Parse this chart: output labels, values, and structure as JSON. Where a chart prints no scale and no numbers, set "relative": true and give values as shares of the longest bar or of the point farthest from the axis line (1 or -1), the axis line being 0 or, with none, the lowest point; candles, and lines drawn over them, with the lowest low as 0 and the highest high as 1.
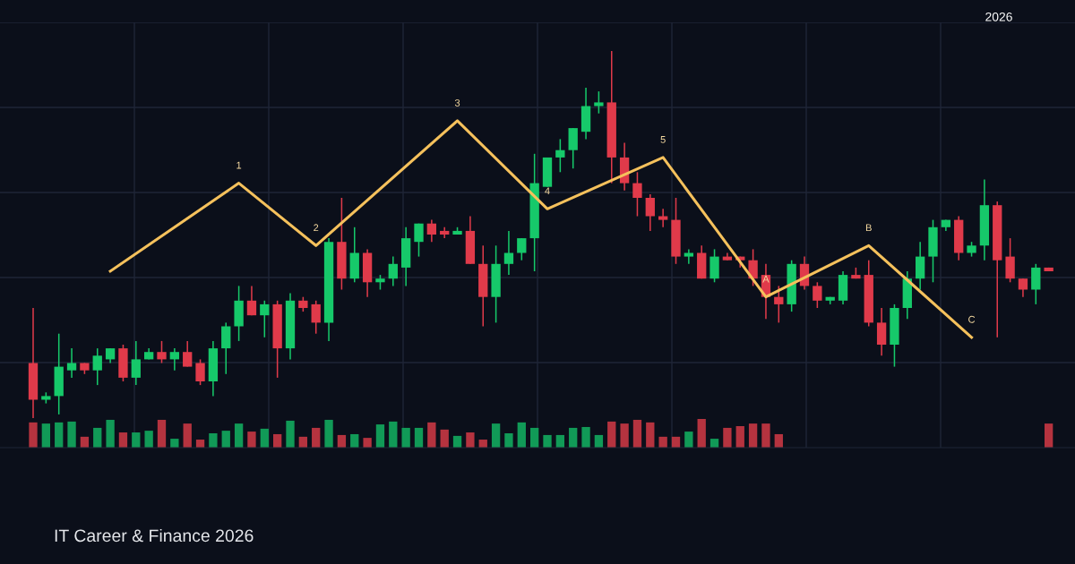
{
  "chart_data": [
    {
      "type": "candlestick",
      "subtitle": "IT Career & Finance 2026",
      "relative": true,
      "grid": true,
      "categories": [
        null,
        null,
        null,
        null,
        null,
        null,
        null,
        null,
        null,
        null,
        null,
        null,
        null,
        null,
        null,
        null,
        null,
        null,
        null,
        null,
        null,
        null,
        null,
        null,
        null,
        null,
        null,
        null,
        null,
        null,
        null,
        null,
        null,
        null,
        null,
        null,
        null,
        null,
        null,
        null,
        null,
        null,
        null,
        null,
        null,
        null,
        null,
        null,
        null,
        null,
        null,
        null,
        null,
        null,
        null,
        null,
        null,
        null,
        null,
        null,
        null,
        null,
        null,
        null,
        null,
        null,
        null,
        null,
        null,
        null,
        null,
        null,
        null,
        null,
        null,
        null,
        null,
        null,
        null,
        null
      ],
      "colors": [
        "#e03a4a",
        "#16c96a",
        "#16c96a",
        "#16c96a",
        "#e03a4a",
        "#16c96a",
        "#16c96a",
        "#e03a4a",
        "#16c96a",
        "#16c96a",
        "#e03a4a",
        "#16c96a",
        "#e03a4a",
        "#e03a4a",
        "#16c96a",
        "#16c96a",
        "#16c96a",
        "#e03a4a",
        "#16c96a",
        "#e03a4a",
        "#16c96a",
        "#e03a4a",
        "#e03a4a",
        "#16c96a",
        "#e03a4a",
        "#16c96a",
        "#e03a4a",
        "#16c96a",
        "#16c96a",
        "#16c96a",
        "#16c96a",
        "#e03a4a",
        "#e03a4a",
        "#16c96a",
        "#e03a4a",
        "#e03a4a",
        "#16c96a",
        "#16c96a",
        "#16c96a",
        "#16c96a",
        "#16c96a",
        "#16c96a",
        "#16c96a",
        "#16c96a",
        "#16c96a",
        "#e03a4a",
        "#e03a4a",
        "#e03a4a",
        "#e03a4a",
        "#e03a4a",
        "#e03a4a",
        "#16c96a",
        "#e03a4a",
        "#16c96a",
        "#e03a4a",
        "#e03a4a",
        "#e03a4a",
        "#e03a4a",
        "#e03a4a",
        "#16c96a",
        "#e03a4a",
        "#e03a4a",
        "#16c96a",
        "#16c96a",
        "#e03a4a",
        "#e03a4a",
        "#e03a4a",
        "#16c96a",
        "#16c96a",
        "#16c96a",
        "#16c96a",
        "#16c96a",
        "#e03a4a",
        "#16c96a",
        "#16c96a",
        "#e03a4a",
        "#e03a4a",
        "#e03a4a",
        "#16c96a",
        "#e03a4a"
      ],
      "ohlc": [
        [
          0.15,
          0.3,
          0,
          0.05
        ],
        [
          0.05,
          0.07,
          0.04,
          0.06
        ],
        [
          0.06,
          0.23,
          0.01,
          0.14
        ],
        [
          0.13,
          0.19,
          0.11,
          0.15
        ],
        [
          0.15,
          0.15,
          0.12,
          0.13
        ],
        [
          0.13,
          0.19,
          0.09,
          0.17
        ],
        [
          0.16,
          0.19,
          0.15,
          0.19
        ],
        [
          0.19,
          0.2,
          0.1,
          0.11
        ],
        [
          0.11,
          0.21,
          0.09,
          0.16
        ],
        [
          0.16,
          0.19,
          0.16,
          0.18
        ],
        [
          0.18,
          0.21,
          0.15,
          0.16
        ],
        [
          0.16,
          0.19,
          0.13,
          0.18
        ],
        [
          0.18,
          0.21,
          0.14,
          0.14
        ],
        [
          0.15,
          0.16,
          0.09,
          0.1
        ],
        [
          0.1,
          0.21,
          0.06,
          0.19
        ],
        [
          0.19,
          0.26,
          0.12,
          0.25
        ],
        [
          0.25,
          0.36,
          0.21,
          0.32
        ],
        [
          0.32,
          0.36,
          0.28,
          0.28
        ],
        [
          0.28,
          0.32,
          0.22,
          0.31
        ],
        [
          0.31,
          0.32,
          0.11,
          0.19
        ],
        [
          0.19,
          0.34,
          0.16,
          0.32
        ],
        [
          0.32,
          0.33,
          0.29,
          0.3
        ],
        [
          0.31,
          0.32,
          0.23,
          0.26
        ],
        [
          0.26,
          0.49,
          0.21,
          0.48
        ],
        [
          0.48,
          0.6,
          0.35,
          0.38
        ],
        [
          0.38,
          0.52,
          0.37,
          0.45
        ],
        [
          0.45,
          0.46,
          0.33,
          0.37
        ],
        [
          0.37,
          0.39,
          0.35,
          0.38
        ],
        [
          0.38,
          0.44,
          0.36,
          0.42
        ],
        [
          0.41,
          0.52,
          0.36,
          0.49
        ],
        [
          0.48,
          0.53,
          0.44,
          0.53
        ],
        [
          0.53,
          0.54,
          0.48,
          0.5
        ],
        [
          0.51,
          0.52,
          0.49,
          0.5
        ],
        [
          0.5,
          0.52,
          0.5,
          0.51
        ],
        [
          0.51,
          0.55,
          0.42,
          0.42
        ],
        [
          0.42,
          0.47,
          0.25,
          0.33
        ],
        [
          0.33,
          0.47,
          0.26,
          0.42
        ],
        [
          0.42,
          0.51,
          0.39,
          0.45
        ],
        [
          0.45,
          0.49,
          0.43,
          0.49
        ],
        [
          0.49,
          0.72,
          0.4,
          0.64
        ],
        [
          0.63,
          0.71,
          0.63,
          0.71
        ],
        [
          0.71,
          0.76,
          0.67,
          0.73
        ],
        [
          0.73,
          0.79,
          0.68,
          0.79
        ],
        [
          0.78,
          0.9,
          0.76,
          0.85
        ],
        [
          0.85,
          0.89,
          0.83,
          0.86
        ],
        [
          0.86,
          1,
          0.64,
          0.71
        ],
        [
          0.71,
          0.75,
          0.62,
          0.64
        ],
        [
          0.64,
          0.67,
          0.55,
          0.6
        ],
        [
          0.6,
          0.61,
          0.51,
          0.55
        ],
        [
          0.55,
          0.57,
          0.52,
          0.54
        ],
        [
          0.54,
          0.6,
          0.42,
          0.44
        ],
        [
          0.44,
          0.46,
          0.42,
          0.45
        ],
        [
          0.45,
          0.47,
          0.38,
          0.38
        ],
        [
          0.38,
          0.46,
          0.37,
          0.44
        ],
        [
          0.44,
          0.45,
          0.43,
          0.43
        ],
        [
          0.44,
          0.44,
          0.41,
          0.43
        ],
        [
          0.43,
          0.46,
          0.36,
          0.38
        ],
        [
          0.39,
          0.42,
          0.27,
          0.33
        ],
        [
          0.33,
          0.36,
          0.26,
          0.31
        ],
        [
          0.31,
          0.43,
          0.29,
          0.42
        ],
        [
          0.42,
          0.44,
          0.35,
          0.36
        ],
        [
          0.36,
          0.37,
          0.3,
          0.32
        ],
        [
          0.32,
          0.33,
          0.31,
          0.33
        ],
        [
          0.32,
          0.4,
          0.31,
          0.39
        ],
        [
          0.39,
          0.41,
          0.38,
          0.38
        ],
        [
          0.39,
          0.43,
          0.25,
          0.26
        ],
        [
          0.26,
          0.3,
          0.17,
          0.2
        ],
        [
          0.2,
          0.31,
          0.14,
          0.3
        ],
        [
          0.3,
          0.4,
          0.27,
          0.38
        ],
        [
          0.38,
          0.48,
          0.35,
          0.44
        ],
        [
          0.44,
          0.54,
          0.37,
          0.52
        ],
        [
          0.52,
          0.54,
          0.51,
          0.54
        ],
        [
          0.54,
          0.55,
          0.43,
          0.45
        ],
        [
          0.45,
          0.48,
          0.44,
          0.47
        ],
        [
          0.47,
          0.65,
          0.43,
          0.58
        ],
        [
          0.58,
          0.59,
          0.22,
          0.43
        ],
        [
          0.44,
          0.49,
          0.37,
          0.38
        ],
        [
          0.38,
          0.38,
          0.33,
          0.35
        ],
        [
          0.35,
          0.42,
          0.31,
          0.41
        ],
        [
          0.41,
          0.41,
          0.4,
          0.4
        ]
      ],
      "series": [
        {
          "type": "line",
          "color": "#f5c15c",
          "values": [
            null,
            null,
            null,
            null,
            null,
            null,
            0.4,
            null,
            null,
            null,
            null,
            null,
            null,
            null,
            null,
            null,
            0.64,
            null,
            null,
            null,
            null,
            null,
            0.47,
            null,
            null,
            null,
            null,
            null,
            null,
            null,
            null,
            null,
            null,
            0.81,
            null,
            null,
            null,
            null,
            null,
            null,
            0.57,
            null,
            null,
            null,
            null,
            null,
            null,
            null,
            null,
            0.71,
            null,
            null,
            null,
            null,
            null,
            null,
            null,
            0.33,
            null,
            null,
            null,
            null,
            null,
            null,
            null,
            0.47,
            null,
            null,
            null,
            null,
            null,
            null,
            null,
            0.22,
            null,
            null,
            null,
            null,
            null,
            null
          ]
        }
      ],
      "annotations": [
        "2026",
        {
          "text": "1",
          "y": 0.64
        },
        {
          "text": "2",
          "y": 0.47
        },
        {
          "text": "3",
          "y": 0.81
        },
        {
          "text": "4",
          "y": 0.57
        },
        {
          "text": "5",
          "y": 0.71
        },
        {
          "text": "A",
          "y": 0.33
        },
        {
          "text": "B",
          "y": 0.47
        },
        {
          "text": "C",
          "y": 0.22
        }
      ]
    },
    {
      "type": "bar",
      "relative": true,
      "grid": "x",
      "categories": [
        null,
        null,
        null,
        null,
        null,
        null,
        null,
        null,
        null,
        null,
        null,
        null,
        null,
        null,
        null,
        null,
        null,
        null,
        null,
        null,
        null,
        null,
        null,
        null,
        null,
        null,
        null,
        null,
        null,
        null,
        null,
        null,
        null,
        null,
        null,
        null,
        null,
        null,
        null,
        null,
        null,
        null,
        null,
        null,
        null,
        null,
        null,
        null,
        null,
        null,
        null,
        null,
        null,
        null,
        null,
        null,
        null,
        null,
        null,
        null,
        null,
        null,
        null,
        null,
        null,
        null,
        null,
        null,
        null,
        null,
        null,
        null,
        null,
        null,
        null,
        null,
        null,
        null,
        null,
        null
      ],
      "values": [
        0.88,
        0.84,
        0.88,
        0.91,
        0.38,
        0.69,
        0.97,
        0.53,
        0.53,
        0.59,
        0.97,
        0.31,
        0.84,
        0.28,
        0.5,
        0.59,
        0.84,
        0.56,
        0.66,
        0.47,
        0.94,
        0.38,
        0.69,
        0.97,
        0.44,
        0.47,
        0.34,
        0.81,
        0.91,
        0.69,
        0.69,
        0.88,
        0.63,
        0.41,
        0.53,
        0.28,
        0.84,
        0.5,
        0.88,
        0.69,
        0.44,
        0.44,
        0.69,
        0.72,
        0.44,
        0.91,
        0.84,
        0.97,
        0.88,
        0.38,
        0.38,
        0.56,
        1,
        0.31,
        0.69,
        0.75,
        0.84,
        0.84,
        0.47,
        null,
        null,
        null,
        null,
        null,
        null,
        null,
        null,
        null,
        null,
        null,
        null,
        null,
        null,
        null,
        null,
        null,
        null,
        null,
        null,
        0.84
      ],
      "colors": [
        "#b5333f",
        "#119a57",
        "#119a57",
        "#119a57",
        "#b5333f",
        "#119a57",
        "#119a57",
        "#b5333f",
        "#119a57",
        "#119a57",
        "#b5333f",
        "#119a57",
        "#b5333f",
        "#b5333f",
        "#119a57",
        "#119a57",
        "#119a57",
        "#b5333f",
        "#119a57",
        "#b5333f",
        "#119a57",
        "#b5333f",
        "#b5333f",
        "#119a57",
        "#b5333f",
        "#119a57",
        "#b5333f",
        "#119a57",
        "#119a57",
        "#119a57",
        "#119a57",
        "#b5333f",
        "#b5333f",
        "#119a57",
        "#b5333f",
        "#b5333f",
        "#119a57",
        "#119a57",
        "#119a57",
        "#119a57",
        "#119a57",
        "#119a57",
        "#119a57",
        "#119a57",
        "#119a57",
        "#b5333f",
        "#b5333f",
        "#b5333f",
        "#b5333f",
        "#b5333f",
        "#b5333f",
        "#119a57",
        "#b5333f",
        "#119a57",
        "#b5333f",
        "#b5333f",
        "#b5333f",
        "#b5333f",
        "#b5333f",
        null,
        null,
        null,
        null,
        null,
        null,
        null,
        null,
        null,
        null,
        null,
        null,
        null,
        null,
        null,
        null,
        null,
        null,
        null,
        null,
        "#b5333f"
      ]
    }
  ]
}
